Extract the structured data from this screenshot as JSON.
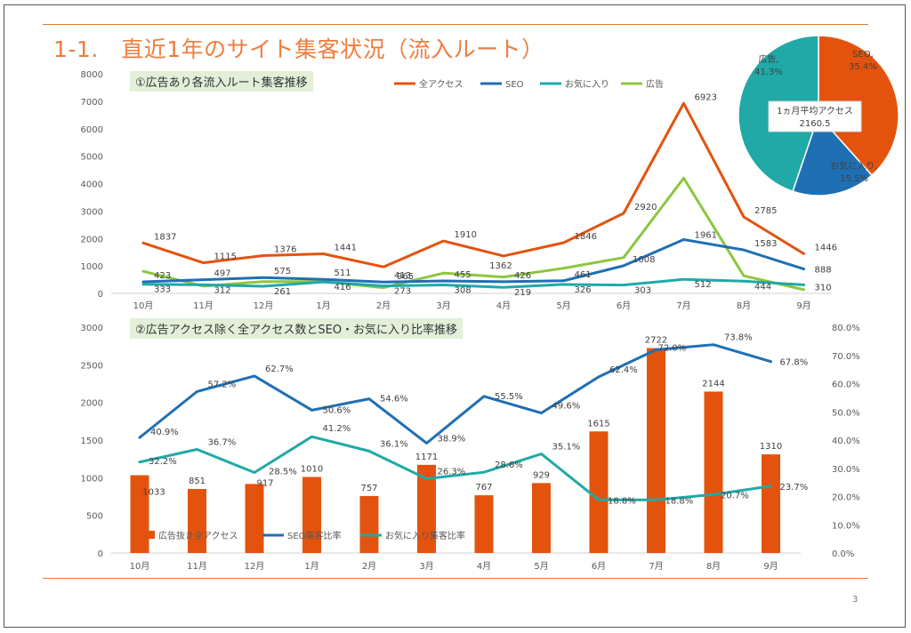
{
  "slide": {
    "title": "1-1.　直近1年のサイト集客状況（流入ルート）",
    "page_number": "3"
  },
  "chart_data": [
    {
      "type": "line",
      "title": "①広告あり各流入ルート集客推移",
      "categories": [
        "10月",
        "11月",
        "12月",
        "1月",
        "2月",
        "3月",
        "4月",
        "5月",
        "6月",
        "7月",
        "8月",
        "9月"
      ],
      "ylim": [
        0,
        8000
      ],
      "yticks": [
        "0",
        "1000",
        "2000",
        "3000",
        "4000",
        "5000",
        "6000",
        "7000",
        "8000"
      ],
      "legend_position": "top",
      "series": [
        {
          "name": "全アクセス",
          "color": "#e4530e",
          "values": [
            1837,
            1115,
            1376,
            1441,
            965,
            1910,
            1362,
            1846,
            2920,
            6923,
            2785,
            1446
          ],
          "labels": [
            "1837",
            "1115",
            "1376",
            "1441",
            "965",
            "1910",
            "1362",
            "1846",
            "2920",
            "6923",
            "2785",
            "1446"
          ]
        },
        {
          "name": "SEO",
          "color": "#1f6fb4",
          "values": [
            423,
            497,
            575,
            511,
            413,
            455,
            426,
            461,
            1008,
            1961,
            1583,
            888
          ],
          "labels": [
            "423",
            "497",
            "575",
            "511",
            "413",
            "455",
            "426",
            "461",
            "1008",
            "1961",
            "1583",
            "888"
          ]
        },
        {
          "name": "お気に入り",
          "color": "#20a9a6",
          "values": [
            333,
            312,
            261,
            416,
            273,
            308,
            219,
            326,
            303,
            512,
            444,
            310
          ],
          "labels": [
            "333",
            "312",
            "261",
            "416",
            "273",
            "308",
            "219",
            "326",
            "303",
            "512",
            "444",
            "310"
          ]
        },
        {
          "name": "広告",
          "color": "#8dc63f",
          "values": [
            804,
            264,
            429,
            431,
            208,
            739,
            595,
            917,
            1305,
            4201,
            641,
            136
          ],
          "labels": []
        }
      ]
    },
    {
      "type": "bar+line",
      "title": "②広告アクセス除く全アクセス数とSEO・お気に入り比率推移",
      "categories": [
        "10月",
        "11月",
        "12月",
        "1月",
        "2月",
        "3月",
        "4月",
        "5月",
        "6月",
        "7月",
        "8月",
        "9月"
      ],
      "ylim_left": [
        0,
        3000
      ],
      "yticks_left": [
        "0",
        "500",
        "1000",
        "1500",
        "2000",
        "2500",
        "3000"
      ],
      "ylim_right": [
        0,
        0.8
      ],
      "yticks_right": [
        "0.0%",
        "10.0%",
        "20.0%",
        "30.0%",
        "40.0%",
        "50.0%",
        "60.0%",
        "70.0%",
        "80.0%"
      ],
      "legend_position": "bottom-left",
      "bars": {
        "name": "広告抜き全アクセス",
        "color": "#e4530e",
        "values": [
          1033,
          851,
          917,
          1010,
          757,
          1171,
          767,
          929,
          1615,
          2722,
          2144,
          1310
        ],
        "labels": [
          "1033",
          "851",
          "917",
          "1010",
          "757",
          "1171",
          "767",
          "929",
          "1615",
          "2722",
          "2144",
          "1310"
        ]
      },
      "lines": [
        {
          "name": "SEO集客比率",
          "color": "#1f6fb4",
          "values": [
            0.409,
            0.572,
            0.627,
            0.506,
            0.546,
            0.389,
            0.555,
            0.496,
            0.624,
            0.72,
            0.738,
            0.678
          ],
          "labels": [
            "40.9%",
            "57.2%",
            "62.7%",
            "50.6%",
            "54.6%",
            "38.9%",
            "55.5%",
            "49.6%",
            "62.4%",
            "72.0%",
            "73.8%",
            "67.8%"
          ]
        },
        {
          "name": "お気に入り集客比率",
          "color": "#20a9a6",
          "values": [
            0.322,
            0.367,
            0.285,
            0.412,
            0.361,
            0.263,
            0.286,
            0.351,
            0.188,
            0.188,
            0.207,
            0.237
          ],
          "labels": [
            "32.2%",
            "36.7%",
            "28.5%",
            "41.2%",
            "36.1%",
            "26.3%",
            "28.6%",
            "35.1%",
            "18.8%",
            "18.8%",
            "20.7%",
            "23.7%"
          ]
        }
      ]
    },
    {
      "type": "pie",
      "title": "",
      "center_label": [
        "1ヵ月平均アクセス",
        "2160.5"
      ],
      "slices": [
        {
          "name": "SEO",
          "label": [
            "SEO,",
            "35.4%"
          ],
          "value": 35.4,
          "color": "#e4530e"
        },
        {
          "name": "お気に入り",
          "label": [
            "お気に入り,",
            "15.5%"
          ],
          "value": 15.5,
          "color": "#1f6fb4"
        },
        {
          "name": "広告",
          "label": [
            "広告,",
            "41.3%"
          ],
          "value": 41.3,
          "color": "#20a9a6"
        }
      ]
    }
  ]
}
